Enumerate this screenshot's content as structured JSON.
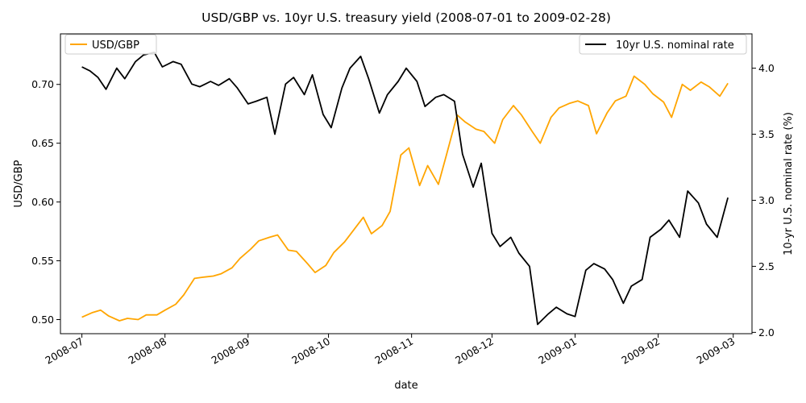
{
  "chart_data": {
    "type": "line",
    "title": "USD/GBP vs. 10yr U.S. treasury yield (2008-07-01 to 2009-02-28)",
    "xlabel": "date",
    "ylabel": "USD/GBP",
    "ylabel_right": "10-yr U.S. nominal rate (%)",
    "xlim": [
      "2008-06-23",
      "2009-03-08"
    ],
    "ylim_left": [
      0.488,
      0.743
    ],
    "ylim_right": [
      1.99,
      4.26
    ],
    "x_ticks": [
      "2008-07",
      "2008-08",
      "2008-09",
      "2008-10",
      "2008-11",
      "2008-12",
      "2009-01",
      "2009-02",
      "2009-03"
    ],
    "y_ticks_left": [
      "0.50",
      "0.55",
      "0.60",
      "0.65",
      "0.70"
    ],
    "y_ticks_right": [
      "2.0",
      "2.5",
      "3.0",
      "3.5",
      "4.0"
    ],
    "grid": false,
    "series": [
      {
        "name": "USD/GBP",
        "axis": "left",
        "color": "#ffa500",
        "legend_position": "upper left",
        "x": [
          "2008-07-01",
          "2008-07-05",
          "2008-07-08",
          "2008-07-11",
          "2008-07-15",
          "2008-07-18",
          "2008-07-22",
          "2008-07-25",
          "2008-07-29",
          "2008-08-01",
          "2008-08-05",
          "2008-08-08",
          "2008-08-12",
          "2008-08-15",
          "2008-08-19",
          "2008-08-22",
          "2008-08-26",
          "2008-08-29",
          "2008-09-02",
          "2008-09-05",
          "2008-09-09",
          "2008-09-12",
          "2008-09-16",
          "2008-09-19",
          "2008-09-23",
          "2008-09-26",
          "2008-09-30",
          "2008-10-03",
          "2008-10-07",
          "2008-10-10",
          "2008-10-14",
          "2008-10-17",
          "2008-10-21",
          "2008-10-24",
          "2008-10-28",
          "2008-10-31",
          "2008-11-04",
          "2008-11-07",
          "2008-11-11",
          "2008-11-14",
          "2008-11-18",
          "2008-11-21",
          "2008-11-25",
          "2008-11-28",
          "2008-12-02",
          "2008-12-05",
          "2008-12-09",
          "2008-12-12",
          "2008-12-16",
          "2008-12-19",
          "2008-12-23",
          "2008-12-26",
          "2008-12-30",
          "2009-01-02",
          "2009-01-06",
          "2009-01-09",
          "2009-01-13",
          "2009-01-16",
          "2009-01-20",
          "2009-01-23",
          "2009-01-27",
          "2009-01-30",
          "2009-02-03",
          "2009-02-06",
          "2009-02-10",
          "2009-02-13",
          "2009-02-17",
          "2009-02-20",
          "2009-02-24",
          "2009-02-27"
        ],
        "values": [
          0.502,
          0.506,
          0.508,
          0.503,
          0.499,
          0.501,
          0.5,
          0.504,
          0.504,
          0.508,
          0.513,
          0.521,
          0.535,
          0.536,
          0.537,
          0.539,
          0.544,
          0.552,
          0.56,
          0.567,
          0.57,
          0.572,
          0.559,
          0.558,
          0.548,
          0.54,
          0.546,
          0.557,
          0.566,
          0.575,
          0.587,
          0.573,
          0.58,
          0.592,
          0.64,
          0.646,
          0.614,
          0.631,
          0.615,
          0.64,
          0.674,
          0.668,
          0.662,
          0.66,
          0.65,
          0.67,
          0.682,
          0.674,
          0.66,
          0.65,
          0.672,
          0.68,
          0.684,
          0.686,
          0.682,
          0.658,
          0.676,
          0.686,
          0.69,
          0.707,
          0.7,
          0.692,
          0.685,
          0.672,
          0.7,
          0.695,
          0.702,
          0.698,
          0.69,
          0.701
        ]
      },
      {
        "name": "10yr U.S. nominal rate",
        "axis": "right",
        "color": "#000000",
        "legend_position": "upper right",
        "x": [
          "2008-07-01",
          "2008-07-04",
          "2008-07-07",
          "2008-07-10",
          "2008-07-14",
          "2008-07-17",
          "2008-07-21",
          "2008-07-24",
          "2008-07-28",
          "2008-07-31",
          "2008-08-04",
          "2008-08-07",
          "2008-08-11",
          "2008-08-14",
          "2008-08-18",
          "2008-08-21",
          "2008-08-25",
          "2008-08-28",
          "2008-09-01",
          "2008-09-04",
          "2008-09-08",
          "2008-09-11",
          "2008-09-15",
          "2008-09-18",
          "2008-09-22",
          "2008-09-25",
          "2008-09-29",
          "2008-10-02",
          "2008-10-06",
          "2008-10-09",
          "2008-10-13",
          "2008-10-16",
          "2008-10-20",
          "2008-10-23",
          "2008-10-27",
          "2008-10-30",
          "2008-11-03",
          "2008-11-06",
          "2008-11-10",
          "2008-11-13",
          "2008-11-17",
          "2008-11-20",
          "2008-11-24",
          "2008-11-27",
          "2008-12-01",
          "2008-12-04",
          "2008-12-08",
          "2008-12-11",
          "2008-12-15",
          "2008-12-18",
          "2008-12-22",
          "2008-12-25",
          "2008-12-29",
          "2009-01-01",
          "2009-01-05",
          "2009-01-08",
          "2009-01-12",
          "2009-01-15",
          "2009-01-19",
          "2009-01-22",
          "2009-01-26",
          "2009-01-29",
          "2009-02-02",
          "2009-02-05",
          "2009-02-09",
          "2009-02-12",
          "2009-02-16",
          "2009-02-19",
          "2009-02-23",
          "2009-02-27"
        ],
        "values": [
          4.01,
          3.98,
          3.93,
          3.84,
          4.0,
          3.92,
          4.05,
          4.1,
          4.12,
          4.01,
          4.05,
          4.03,
          3.88,
          3.86,
          3.9,
          3.87,
          3.92,
          3.85,
          3.73,
          3.75,
          3.78,
          3.5,
          3.88,
          3.93,
          3.8,
          3.95,
          3.65,
          3.55,
          3.85,
          4.0,
          4.09,
          3.92,
          3.66,
          3.8,
          3.9,
          4.0,
          3.9,
          3.71,
          3.78,
          3.8,
          3.75,
          3.35,
          3.1,
          3.28,
          2.75,
          2.65,
          2.72,
          2.6,
          2.5,
          2.06,
          2.14,
          2.19,
          2.14,
          2.12,
          2.47,
          2.52,
          2.48,
          2.4,
          2.22,
          2.35,
          2.4,
          2.72,
          2.78,
          2.85,
          2.72,
          3.07,
          2.98,
          2.82,
          2.72,
          3.02
        ]
      }
    ]
  }
}
